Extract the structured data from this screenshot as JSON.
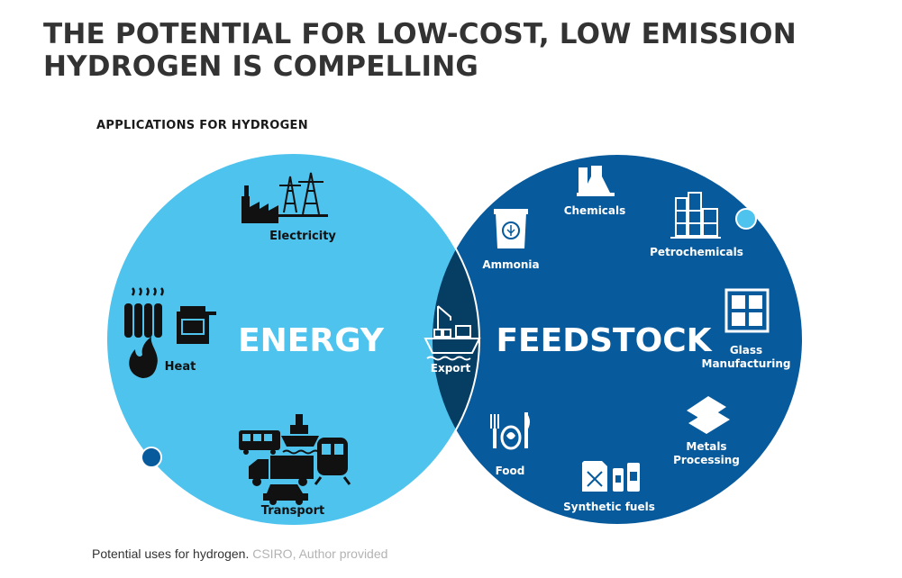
{
  "title_line1": "THE POTENTIAL FOR LOW-COST, LOW EMISSION",
  "title_line2": "HYDROGEN IS COMPELLING",
  "subheading": "APPLICATIONS FOR HYDROGEN",
  "energy": {
    "label": "ENERGY",
    "color": "#4ec3ee",
    "items": {
      "electricity": "Electricity",
      "heat": "Heat",
      "transport": "Transport"
    }
  },
  "feedstock": {
    "label": "FEEDSTOCK",
    "color": "#075a9c",
    "items": {
      "chemicals": "Chemicals",
      "ammonia": "Ammonia",
      "petrochemicals": "Petrochemicals",
      "glass_line1": "Glass",
      "glass_line2": "Manufacturing",
      "metals_line1": "Metals",
      "metals_line2": "Processing",
      "synthetic_fuels": "Synthetic fuels",
      "food": "Food"
    }
  },
  "overlap": {
    "label": "Export",
    "color": "#063d63"
  },
  "caption": {
    "text": "Potential uses for hydrogen.",
    "credit": "CSIRO, Author provided"
  }
}
